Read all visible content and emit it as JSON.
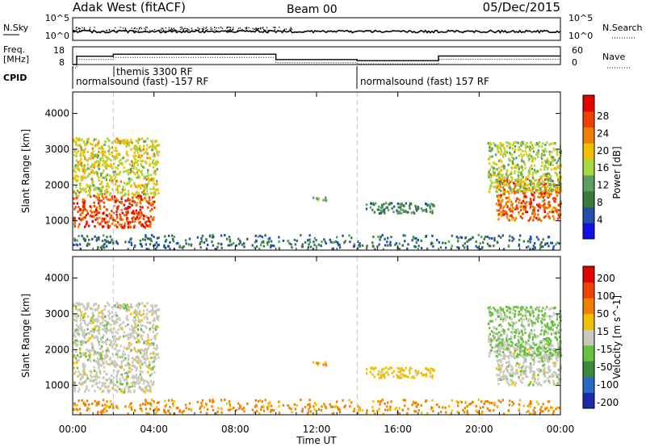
{
  "header": {
    "site": "Adak West (fitACF)",
    "beam": "Beam 00",
    "date": "05/Dec/2015"
  },
  "noise_panel": {
    "left_label": "N.Sky",
    "left_ticks": [
      "10^5",
      "10^0"
    ],
    "right_label": "N.Search",
    "right_ticks": [
      "10^5",
      "10^0"
    ]
  },
  "freq_panel": {
    "left_label_1": "Freq.",
    "left_label_2": "[MHz]",
    "left_ticks": [
      "18",
      "8"
    ],
    "right_label": "Nave",
    "right_ticks": [
      "60",
      "0"
    ]
  },
  "cpid_panel": {
    "label": "CPID",
    "programs": [
      {
        "text": "normalsound (fast) -157 RF",
        "start_hour": 0
      },
      {
        "text": "themis 3300 RF",
        "start_hour": 2.0
      },
      {
        "text": "normalsound (fast) 157 RF",
        "start_hour": 14.0
      }
    ]
  },
  "axes": {
    "ylabel": "Slant Range [km]",
    "xlabel": "Time UT",
    "x_ticks": [
      "00:00",
      "04:00",
      "08:00",
      "12:00",
      "16:00",
      "20:00",
      "00:00"
    ],
    "y_ticks": [
      "1000",
      "2000",
      "3000",
      "4000"
    ]
  },
  "colorbars": {
    "power": {
      "label": "Power [dB]",
      "ticks": [
        "4",
        "8",
        "12",
        "16",
        "20",
        "24",
        "28"
      ],
      "colors": [
        "#1010e0",
        "#2050a8",
        "#3a7a3a",
        "#5aa060",
        "#a8d840",
        "#f0c000",
        "#f08000",
        "#f04000",
        "#e80000"
      ]
    },
    "velocity": {
      "label": "Velocity [m s^-1]",
      "ticks": [
        "200",
        "100",
        "50",
        "15",
        "-15",
        "-50",
        "-100",
        "-200"
      ],
      "colors": [
        "#1a2aa8",
        "#2a6ac0",
        "#3a8a3a",
        "#68c040",
        "#c8c8c0",
        "#f0c000",
        "#f08000",
        "#f04000",
        "#e00000"
      ]
    }
  },
  "chart_data": {
    "type": "heatmap",
    "title": "Adak West (fitACF)",
    "xlabel": "Time UT",
    "ylabel": "Slant Range [km]",
    "xlim": [
      0,
      24
    ],
    "ylim": [
      180,
      4600
    ],
    "dashed_lines_hours": [
      2.0,
      14.0
    ],
    "frequency_segments": [
      {
        "start": 0,
        "end": 0.2,
        "mhz": 8
      },
      {
        "start": 0.2,
        "end": 2.0,
        "mhz": 12.7
      },
      {
        "start": 2.0,
        "end": 10.0,
        "mhz": 13.8
      },
      {
        "start": 10.0,
        "end": 14.0,
        "mhz": 10.8
      },
      {
        "start": 14.0,
        "end": 18.0,
        "mhz": 10.2
      },
      {
        "start": 18.0,
        "end": 24.0,
        "mhz": 12.8
      }
    ],
    "echo_regions": [
      {
        "name": "dusk-band",
        "t0": 0.0,
        "t1": 4.0,
        "r0": 800,
        "r1": 1700,
        "power_db": 28,
        "velocity": 0
      },
      {
        "name": "dusk-far",
        "t0": 0.0,
        "t1": 4.2,
        "r0": 1700,
        "r1": 3300,
        "power_db": 18,
        "velocity": 0
      },
      {
        "name": "midday-patch",
        "t0": 11.8,
        "t1": 12.6,
        "r0": 1550,
        "r1": 1650,
        "power_db": 12,
        "velocity": -50
      },
      {
        "name": "afternoon-band",
        "t0": 14.4,
        "t1": 17.8,
        "r0": 1200,
        "r1": 1500,
        "power_db": 8,
        "velocity": -30
      },
      {
        "name": "dawn-band",
        "t0": 20.8,
        "t1": 24.0,
        "r0": 1000,
        "r1": 2200,
        "power_db": 26,
        "velocity": 0
      },
      {
        "name": "dawn-far",
        "t0": 20.4,
        "t1": 24.0,
        "r0": 1800,
        "r1": 3200,
        "power_db": 16,
        "velocity": 20
      },
      {
        "name": "near-range",
        "t0": 0.0,
        "t1": 24.0,
        "r0": 200,
        "r1": 600,
        "power_db": 6,
        "velocity": -60
      }
    ]
  }
}
